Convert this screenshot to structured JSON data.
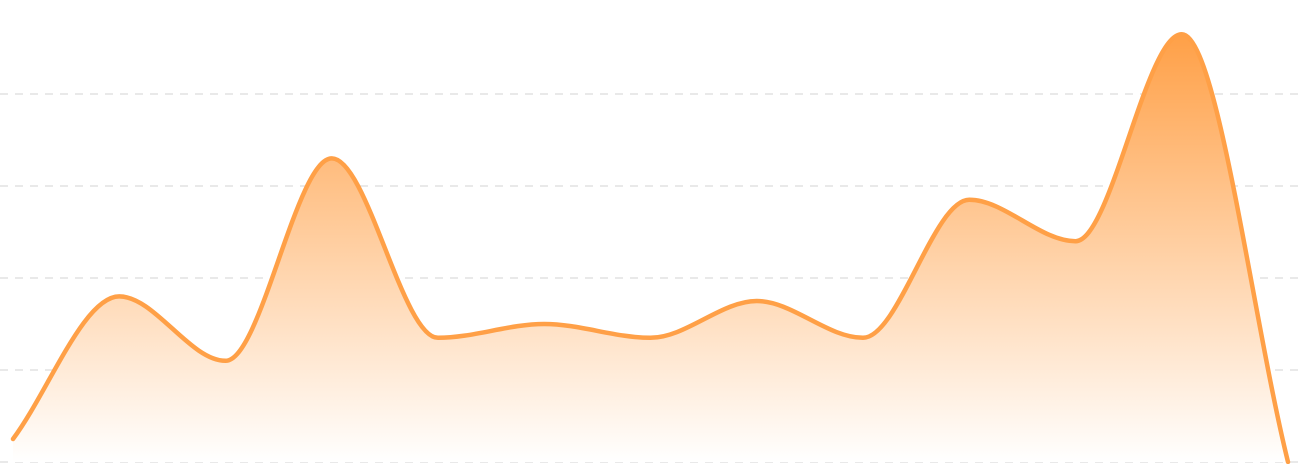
{
  "chart_data": {
    "type": "area",
    "title": "",
    "xlabel": "",
    "ylabel": "",
    "ylim": [
      0,
      100
    ],
    "grid": true,
    "gridlines": [
      0,
      20,
      40,
      60,
      80
    ],
    "curve": "smooth",
    "series": [
      {
        "values": [
          5,
          36,
          22,
          66,
          27,
          30,
          27,
          35,
          27,
          57,
          48,
          93,
          0
        ],
        "color": "#FFA047",
        "fill_top_color": "#FFA047",
        "fill_bottom_color": "#FFFFFF"
      }
    ]
  }
}
